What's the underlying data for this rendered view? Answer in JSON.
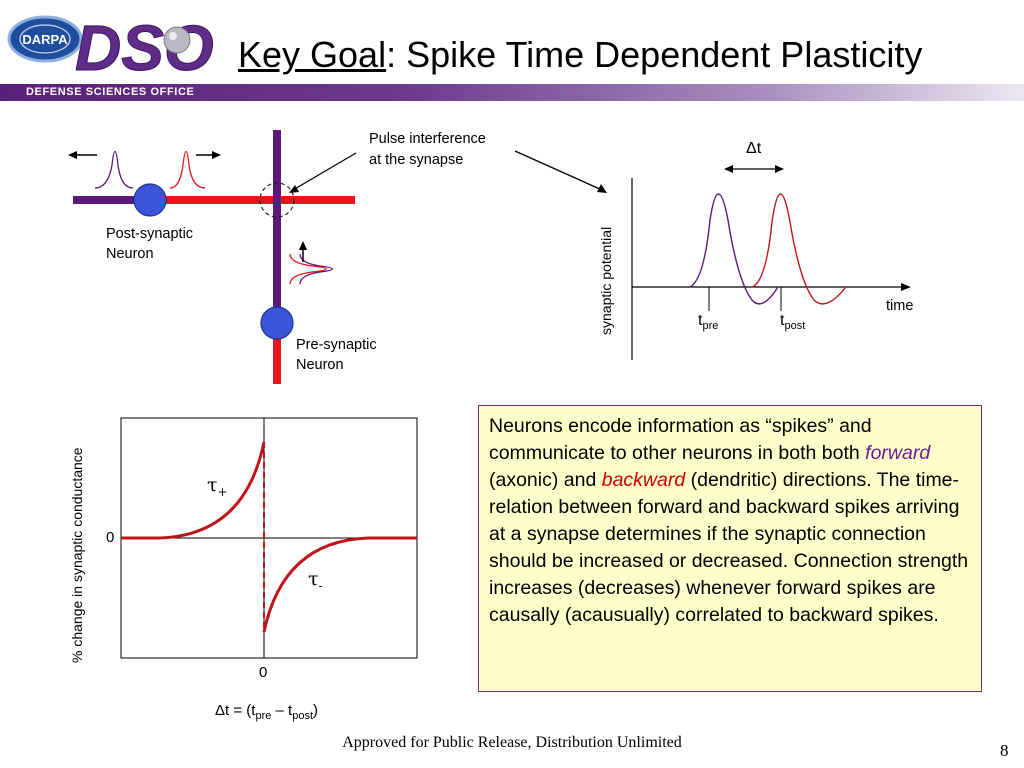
{
  "logo": {
    "agency": "DARPA",
    "office_mark": "DSO",
    "office_name": "DEFENSE SCIENCES OFFICE"
  },
  "title": {
    "key": "Key Goal",
    "rest": ": Spike Time Dependent Plasticity"
  },
  "diagram": {
    "interference_label_1": "Pulse interference",
    "interference_label_2": "at the synapse",
    "post_label_1": "Post-synaptic",
    "post_label_2": "Neuron",
    "pre_label_1": "Pre-synaptic",
    "pre_label_2": "Neuron",
    "ylabel": "synaptic potential",
    "xlabel": "time",
    "delta_t": "Δt",
    "t_pre_main": "t",
    "t_pre_sub": "pre",
    "t_post_main": "t",
    "t_post_sub": "post"
  },
  "stdp": {
    "ylabel": "% change in synaptic conductance",
    "zero_y": "0",
    "zero_x": "0",
    "tau_plus": "τ",
    "tau_plus_sub": "+",
    "tau_minus": "τ",
    "tau_minus_sub": "-",
    "xlabel_prefix": "Δt = (t",
    "xlabel_pre": "pre",
    "xlabel_mid": " – t",
    "xlabel_post": "post",
    "xlabel_suffix": ")"
  },
  "textbox": {
    "p1": "Neurons encode information as “spikes” and communicate to other neurons in both both ",
    "forward": "forward",
    "p2": " (axonic) and ",
    "backward": "backward",
    "p3": " (dendritic) directions.  The time-relation between forward and backward spikes arriving at a synapse determines if the synaptic connection should be increased or decreased. Connection strength increases (decreases) whenever forward spikes are causally (acausually) correlated to backward spikes."
  },
  "footer": "Approved for Public Release, Distribution Unlimited",
  "page_number": "8",
  "colors": {
    "purple": "#5b1a7a",
    "red": "#e8141b",
    "curve_red": "#c0141b",
    "neuron_blue": "#3a55d8",
    "box_fill": "#ffffcc"
  }
}
